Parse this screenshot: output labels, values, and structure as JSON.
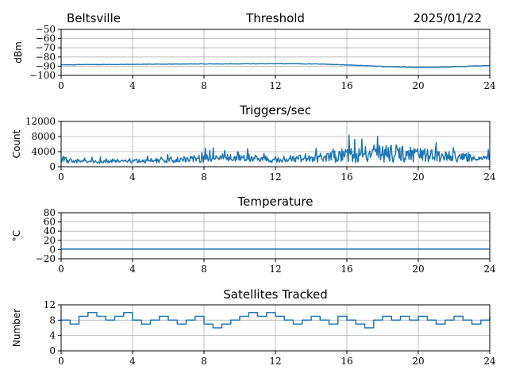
{
  "header": {
    "location": "Beltsville",
    "date": "2025/01/22"
  },
  "chart_data": [
    {
      "type": "line",
      "title": "Threshold",
      "ylabel": "dBm",
      "xlim": [
        0,
        24
      ],
      "ylim": [
        -100,
        -50
      ],
      "xticks": [
        0,
        4,
        8,
        12,
        16,
        20,
        24
      ],
      "yticks": [
        -100,
        -90,
        -80,
        -70,
        -60,
        -50
      ],
      "ytick_labels": [
        "−100",
        "−90",
        "−80",
        "−70",
        "−60",
        "−50"
      ],
      "grid": true,
      "x": [
        0,
        1,
        2,
        3,
        4,
        5,
        6,
        7,
        8,
        9,
        10,
        11,
        12,
        13,
        14,
        15,
        16,
        17,
        18,
        19,
        20,
        21,
        22,
        23,
        24
      ],
      "values": [
        -88.5,
        -88.3,
        -88.2,
        -88.1,
        -88.0,
        -87.8,
        -87.7,
        -87.6,
        -87.5,
        -87.5,
        -87.4,
        -87.4,
        -87.3,
        -87.3,
        -87.4,
        -87.9,
        -88.6,
        -89.4,
        -90.3,
        -90.9,
        -91.3,
        -91.2,
        -90.6,
        -89.9,
        -89.3
      ]
    },
    {
      "type": "line",
      "title": "Triggers/sec",
      "ylabel": "Count",
      "xlim": [
        0,
        24
      ],
      "ylim": [
        0,
        12000
      ],
      "xticks": [
        0,
        4,
        8,
        12,
        16,
        20,
        24
      ],
      "yticks": [
        0,
        4000,
        8000,
        12000
      ],
      "ytick_labels": [
        "0",
        "4000",
        "8000",
        "12000"
      ],
      "grid": true,
      "x": [
        0,
        1,
        2,
        3,
        4,
        5,
        6,
        7,
        8,
        9,
        10,
        11,
        12,
        13,
        14,
        15,
        16,
        17,
        18,
        19,
        20,
        21,
        22,
        23,
        24
      ],
      "values": [
        1800,
        1500,
        1300,
        1400,
        1500,
        1600,
        1800,
        2000,
        2200,
        2400,
        2300,
        2200,
        1900,
        2100,
        2400,
        2600,
        3000,
        3300,
        3600,
        3400,
        3200,
        2900,
        2600,
        2200,
        1800
      ],
      "spread": [
        1400,
        900,
        600,
        700,
        800,
        1000,
        1300,
        1500,
        1700,
        1700,
        1600,
        1500,
        1400,
        1700,
        2100,
        2500,
        3200,
        3700,
        4200,
        3800,
        3200,
        2700,
        2200,
        1800,
        1500
      ]
    },
    {
      "type": "line",
      "title": "Temperature",
      "ylabel": "°C",
      "xlim": [
        0,
        24
      ],
      "ylim": [
        -20,
        80
      ],
      "xticks": [
        0,
        4,
        8,
        12,
        16,
        20,
        24
      ],
      "yticks": [
        -20,
        0,
        20,
        40,
        60,
        80
      ],
      "ytick_labels": [
        "−20",
        "0",
        "20",
        "40",
        "60",
        "80"
      ],
      "grid": true,
      "x": [
        0,
        24
      ],
      "values": [
        1,
        1
      ]
    },
    {
      "type": "line",
      "title": "Satellites Tracked",
      "ylabel": "Number",
      "xlim": [
        0,
        24
      ],
      "ylim": [
        0,
        12
      ],
      "xticks": [
        0,
        4,
        8,
        12,
        16,
        20,
        24
      ],
      "yticks": [
        0,
        4,
        8,
        12
      ],
      "ytick_labels": [
        "0",
        "4",
        "8",
        "12"
      ],
      "grid": true,
      "x": [
        0,
        0.5,
        1,
        1.5,
        2,
        2.5,
        3,
        3.5,
        4,
        4.5,
        5,
        5.5,
        6,
        6.5,
        7,
        7.5,
        8,
        8.5,
        9,
        9.5,
        10,
        10.5,
        11,
        11.5,
        12,
        12.5,
        13,
        13.5,
        14,
        14.5,
        15,
        15.5,
        16,
        16.5,
        17,
        17.5,
        18,
        18.5,
        19,
        19.5,
        20,
        20.5,
        21,
        21.5,
        22,
        22.5,
        23,
        23.5,
        24
      ],
      "values": [
        8,
        7,
        9,
        10,
        9,
        8,
        9,
        10,
        8,
        7,
        8,
        9,
        8,
        7,
        8,
        9,
        7,
        6,
        7,
        8,
        9,
        10,
        9,
        10,
        9,
        8,
        7,
        8,
        9,
        8,
        7,
        9,
        8,
        7,
        6,
        8,
        9,
        8,
        9,
        8,
        9,
        8,
        7,
        8,
        9,
        8,
        7,
        8,
        9
      ]
    }
  ]
}
